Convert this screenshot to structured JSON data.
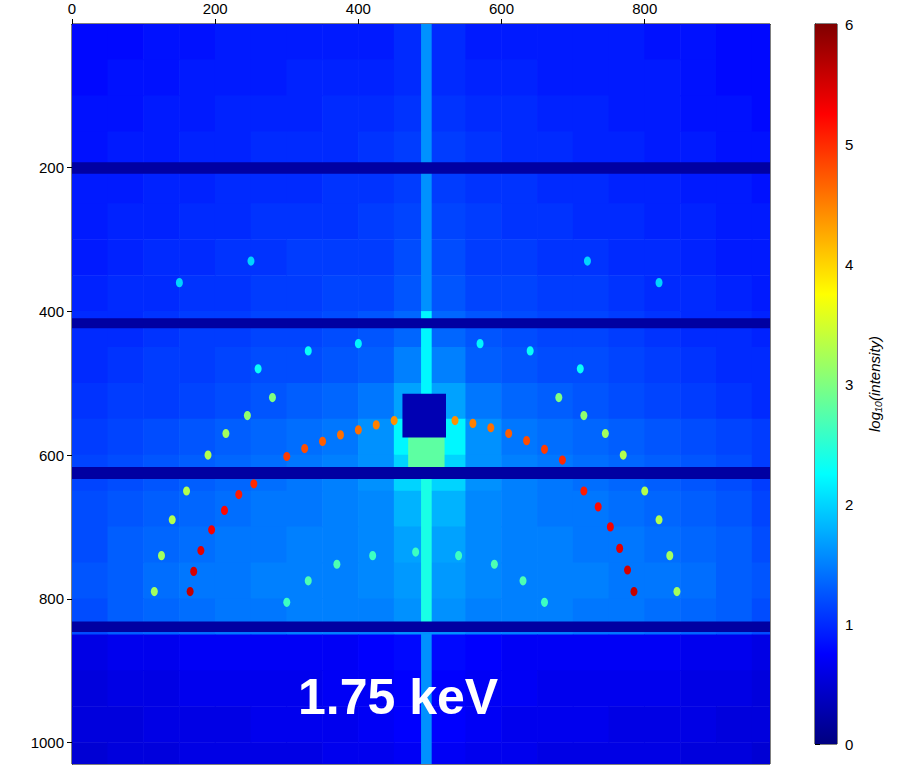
{
  "chart_data": {
    "type": "heatmap",
    "annotation": "1.75 keV",
    "xlim": [
      0,
      975
    ],
    "ylim": [
      0,
      1030
    ],
    "xticks": [
      0,
      200,
      400,
      600,
      800
    ],
    "yticks": [
      200,
      400,
      600,
      800,
      1000
    ],
    "grid": false,
    "colorbar": {
      "label": "log₁₀(intensity)",
      "range": [
        0,
        6
      ],
      "ticks": [
        0,
        1,
        2,
        3,
        4,
        5,
        6
      ]
    },
    "cells": {
      "x": [
        25,
        75,
        125,
        175,
        225,
        275,
        325,
        375,
        425,
        475,
        525,
        575,
        625,
        675,
        725,
        775,
        825,
        875,
        925,
        975
      ],
      "y": [
        25,
        75,
        125,
        175,
        225,
        275,
        325,
        375,
        425,
        475,
        525,
        575,
        625,
        675,
        725,
        775,
        825,
        875,
        925,
        975,
        1025
      ],
      "values": [
        [
          0.8,
          0.8,
          0.85,
          0.85,
          0.9,
          0.9,
          0.9,
          0.9,
          0.9,
          1.0,
          1.0,
          0.9,
          0.9,
          0.9,
          0.9,
          0.9,
          0.85,
          0.85,
          0.8,
          0.8
        ],
        [
          0.8,
          0.85,
          0.85,
          0.9,
          0.9,
          0.9,
          0.95,
          0.95,
          0.95,
          1.0,
          1.0,
          0.95,
          0.95,
          0.9,
          0.9,
          0.9,
          0.9,
          0.85,
          0.8,
          0.8
        ],
        [
          0.85,
          0.85,
          0.9,
          0.9,
          0.95,
          0.95,
          0.95,
          1.0,
          1.0,
          1.05,
          1.05,
          1.0,
          1.0,
          0.95,
          0.95,
          0.9,
          0.9,
          0.85,
          0.85,
          0.8
        ],
        [
          0.85,
          0.9,
          0.9,
          0.95,
          0.95,
          1.0,
          1.0,
          1.0,
          1.05,
          1.1,
          1.1,
          1.05,
          1.0,
          1.0,
          0.95,
          0.95,
          0.9,
          0.9,
          0.85,
          0.85
        ],
        [
          0.9,
          0.9,
          0.95,
          0.95,
          1.0,
          1.0,
          1.0,
          1.05,
          1.05,
          1.1,
          1.1,
          1.05,
          1.05,
          1.0,
          1.0,
          0.95,
          0.95,
          0.9,
          0.9,
          0.85
        ],
        [
          0.9,
          0.95,
          0.95,
          1.0,
          1.0,
          1.05,
          1.05,
          1.05,
          1.1,
          1.15,
          1.15,
          1.1,
          1.05,
          1.05,
          1.0,
          1.0,
          0.95,
          0.95,
          0.9,
          0.9
        ],
        [
          0.9,
          0.95,
          1.0,
          1.0,
          1.05,
          1.05,
          1.1,
          1.1,
          1.1,
          1.2,
          1.2,
          1.1,
          1.1,
          1.05,
          1.05,
          1.0,
          1.0,
          0.95,
          0.9,
          0.9
        ],
        [
          0.95,
          1.0,
          1.0,
          1.05,
          1.05,
          1.1,
          1.1,
          1.15,
          1.15,
          1.25,
          1.25,
          1.15,
          1.15,
          1.1,
          1.1,
          1.05,
          1.0,
          1.0,
          0.95,
          0.9
        ],
        [
          1.0,
          1.0,
          1.05,
          1.1,
          1.1,
          1.15,
          1.15,
          1.2,
          1.25,
          1.35,
          1.35,
          1.25,
          1.2,
          1.15,
          1.15,
          1.1,
          1.05,
          1.0,
          1.0,
          0.95
        ],
        [
          1.0,
          1.05,
          1.1,
          1.1,
          1.15,
          1.2,
          1.2,
          1.25,
          1.3,
          1.5,
          1.5,
          1.3,
          1.25,
          1.2,
          1.2,
          1.15,
          1.1,
          1.05,
          1.0,
          1.0
        ],
        [
          1.05,
          1.1,
          1.1,
          1.15,
          1.2,
          1.25,
          1.3,
          1.35,
          1.45,
          1.7,
          1.7,
          1.45,
          1.35,
          1.3,
          1.25,
          1.2,
          1.15,
          1.1,
          1.05,
          1.0
        ],
        [
          1.1,
          1.15,
          1.2,
          1.25,
          1.3,
          1.35,
          1.4,
          1.45,
          1.6,
          2.2,
          2.2,
          1.6,
          1.45,
          1.4,
          1.35,
          1.3,
          1.25,
          1.2,
          1.15,
          1.1
        ],
        [
          1.15,
          1.2,
          1.25,
          1.3,
          1.35,
          1.4,
          1.45,
          1.5,
          1.6,
          2.0,
          2.0,
          1.6,
          1.5,
          1.45,
          1.4,
          1.35,
          1.3,
          1.25,
          1.2,
          1.1
        ],
        [
          1.2,
          1.25,
          1.3,
          1.35,
          1.4,
          1.45,
          1.45,
          1.5,
          1.55,
          1.8,
          1.8,
          1.55,
          1.5,
          1.45,
          1.45,
          1.4,
          1.35,
          1.3,
          1.25,
          1.15
        ],
        [
          1.2,
          1.3,
          1.35,
          1.4,
          1.45,
          1.45,
          1.5,
          1.5,
          1.55,
          1.7,
          1.7,
          1.55,
          1.5,
          1.5,
          1.45,
          1.45,
          1.4,
          1.35,
          1.3,
          1.2
        ],
        [
          1.25,
          1.3,
          1.4,
          1.45,
          1.45,
          1.5,
          1.5,
          1.5,
          1.55,
          1.65,
          1.65,
          1.55,
          1.5,
          1.5,
          1.5,
          1.45,
          1.45,
          1.4,
          1.3,
          1.25
        ],
        [
          1.2,
          1.3,
          1.35,
          1.4,
          1.45,
          1.45,
          1.5,
          1.5,
          1.5,
          1.6,
          1.6,
          1.5,
          1.5,
          1.5,
          1.45,
          1.45,
          1.4,
          1.35,
          1.3,
          1.2
        ],
        [
          0.6,
          0.65,
          0.65,
          0.7,
          0.7,
          0.7,
          0.7,
          0.7,
          0.75,
          0.8,
          0.8,
          0.75,
          0.7,
          0.7,
          0.7,
          0.7,
          0.7,
          0.65,
          0.65,
          0.6
        ],
        [
          0.55,
          0.6,
          0.6,
          0.65,
          0.65,
          0.65,
          0.65,
          0.7,
          0.7,
          0.75,
          0.75,
          0.7,
          0.7,
          0.65,
          0.65,
          0.65,
          0.65,
          0.6,
          0.6,
          0.55
        ],
        [
          0.55,
          0.55,
          0.6,
          0.6,
          0.6,
          0.65,
          0.65,
          0.65,
          0.7,
          0.75,
          0.75,
          0.7,
          0.65,
          0.65,
          0.65,
          0.6,
          0.6,
          0.6,
          0.55,
          0.55
        ],
        [
          0.5,
          0.55,
          0.55,
          0.6,
          0.6,
          0.6,
          0.6,
          0.65,
          0.65,
          0.7,
          0.7,
          0.65,
          0.65,
          0.6,
          0.6,
          0.6,
          0.6,
          0.55,
          0.55,
          0.5
        ]
      ]
    },
    "regions": [
      [
        488,
        502,
        0,
        400,
        1.6
      ],
      [
        488,
        502,
        400,
        515,
        2.2
      ],
      [
        488,
        502,
        575,
        832,
        2.4
      ],
      [
        488,
        502,
        846,
        1030,
        1.6
      ],
      [
        470,
        520,
        575,
        620,
        2.8
      ],
      [
        0,
        975,
        193,
        208,
        0.2
      ],
      [
        0,
        975,
        410,
        423,
        0.2
      ],
      [
        0,
        975,
        617,
        633,
        0.2
      ],
      [
        0,
        975,
        832,
        846,
        0.2
      ],
      [
        462,
        522,
        515,
        575,
        0.3
      ]
    ],
    "peaks": [
      [
        165,
        790,
        5.6
      ],
      [
        170,
        762,
        5.5
      ],
      [
        180,
        733,
        5.4
      ],
      [
        195,
        704,
        5.3
      ],
      [
        213,
        677,
        5.2
      ],
      [
        233,
        655,
        5.1
      ],
      [
        254,
        640,
        5.0
      ],
      [
        300,
        602,
        4.9
      ],
      [
        325,
        591,
        4.8
      ],
      [
        350,
        581,
        4.7
      ],
      [
        375,
        572,
        4.6
      ],
      [
        400,
        565,
        4.6
      ],
      [
        425,
        558,
        4.5
      ],
      [
        450,
        552,
        4.4
      ],
      [
        535,
        552,
        4.4
      ],
      [
        560,
        556,
        4.5
      ],
      [
        585,
        562,
        4.6
      ],
      [
        610,
        570,
        4.7
      ],
      [
        635,
        580,
        4.8
      ],
      [
        660,
        592,
        4.9
      ],
      [
        685,
        607,
        5.0
      ],
      [
        715,
        650,
        5.1
      ],
      [
        735,
        672,
        5.2
      ],
      [
        752,
        700,
        5.3
      ],
      [
        765,
        730,
        5.4
      ],
      [
        776,
        760,
        5.5
      ],
      [
        785,
        790,
        5.6
      ],
      [
        115,
        790,
        3.2
      ],
      [
        125,
        740,
        3.2
      ],
      [
        140,
        690,
        3.3
      ],
      [
        160,
        650,
        3.3
      ],
      [
        190,
        600,
        3.3
      ],
      [
        215,
        570,
        3.2
      ],
      [
        245,
        545,
        3.1
      ],
      [
        280,
        520,
        3.0
      ],
      [
        845,
        790,
        3.2
      ],
      [
        835,
        740,
        3.2
      ],
      [
        820,
        690,
        3.3
      ],
      [
        800,
        650,
        3.3
      ],
      [
        770,
        600,
        3.3
      ],
      [
        745,
        570,
        3.2
      ],
      [
        715,
        545,
        3.1
      ],
      [
        680,
        520,
        3.0
      ],
      [
        300,
        805,
        2.6
      ],
      [
        330,
        775,
        2.7
      ],
      [
        370,
        752,
        2.7
      ],
      [
        420,
        740,
        2.6
      ],
      [
        480,
        735,
        2.6
      ],
      [
        540,
        740,
        2.6
      ],
      [
        590,
        752,
        2.7
      ],
      [
        630,
        775,
        2.7
      ],
      [
        660,
        805,
        2.6
      ],
      [
        260,
        480,
        2.3
      ],
      [
        330,
        455,
        2.3
      ],
      [
        400,
        445,
        2.2
      ],
      [
        570,
        445,
        2.2
      ],
      [
        640,
        455,
        2.3
      ],
      [
        710,
        480,
        2.3
      ],
      [
        150,
        360,
        2.0
      ],
      [
        250,
        330,
        2.0
      ],
      [
        720,
        330,
        2.0
      ],
      [
        820,
        360,
        2.0
      ]
    ]
  }
}
